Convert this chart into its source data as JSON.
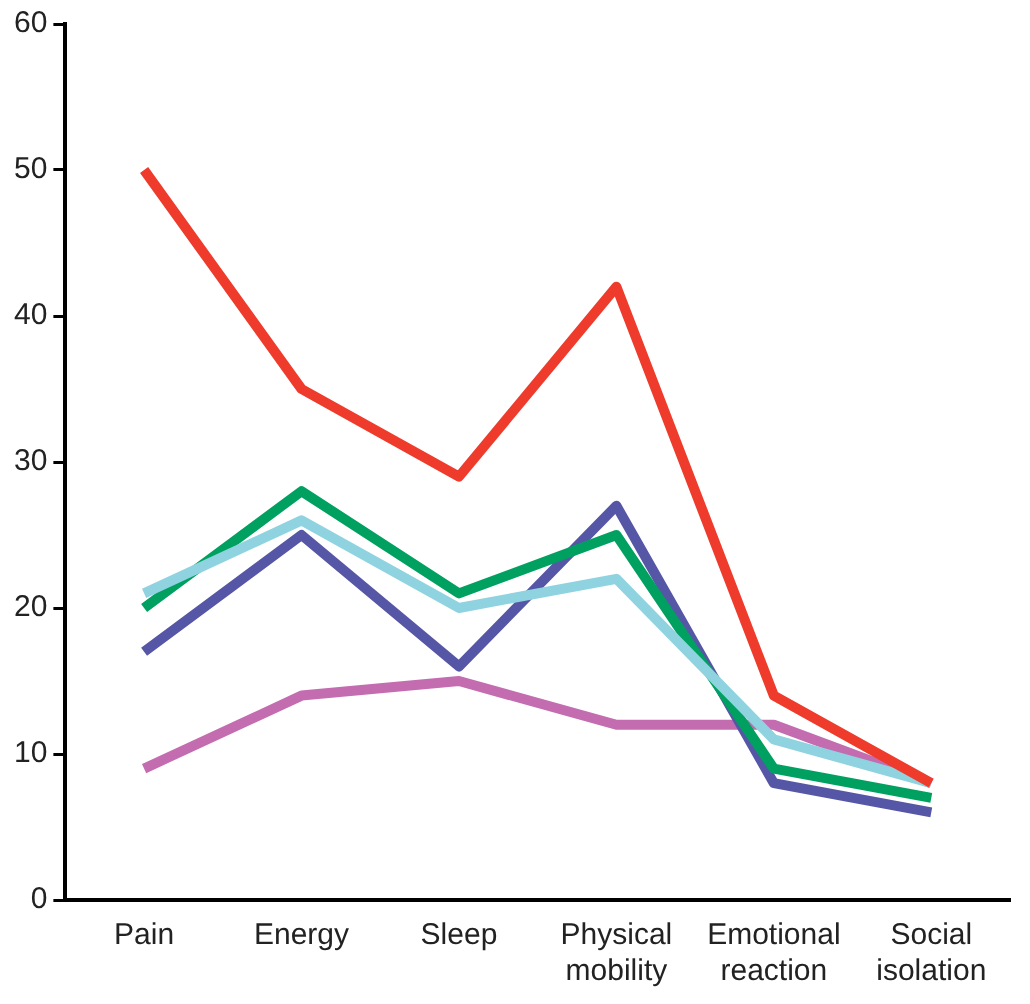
{
  "chart_data": {
    "type": "line",
    "categories": [
      [
        "Pain"
      ],
      [
        "Energy"
      ],
      [
        "Sleep"
      ],
      [
        "Physical",
        "mobility"
      ],
      [
        "Emotional",
        "reaction"
      ],
      [
        "Social",
        "isolation"
      ]
    ],
    "series": [
      {
        "color": "#ee3b2b",
        "values": [
          50,
          35,
          29,
          42,
          14,
          8
        ]
      },
      {
        "color": "#8fd3e0",
        "values": [
          21,
          26,
          20,
          22,
          11,
          8
        ]
      },
      {
        "color": "#00a160",
        "values": [
          20,
          28,
          21,
          25,
          9,
          7
        ]
      },
      {
        "color": "#5656a6",
        "values": [
          17,
          25,
          16,
          27,
          8,
          6
        ]
      },
      {
        "color": "#c36cb0",
        "values": [
          9,
          14,
          15,
          12,
          12,
          8
        ]
      }
    ],
    "ylim": [
      0,
      60
    ],
    "yticks": [
      0,
      10,
      20,
      30,
      40,
      50,
      60
    ],
    "grid": false,
    "legend": false,
    "marker": "none",
    "line_style": "solid"
  }
}
